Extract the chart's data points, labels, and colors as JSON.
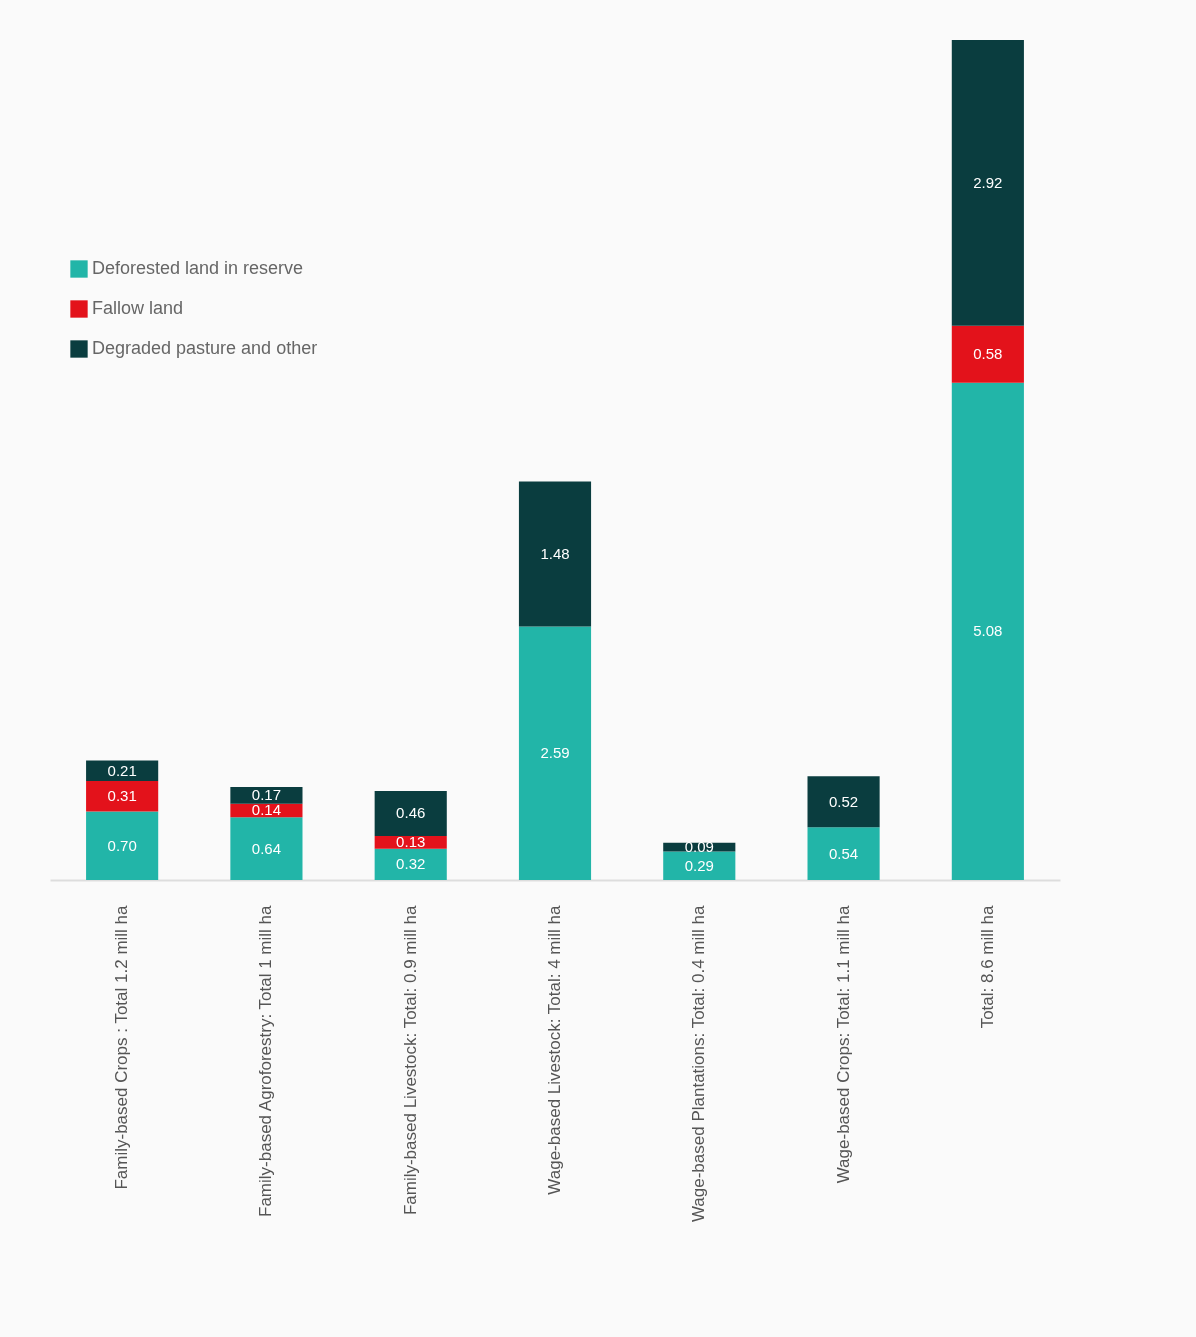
{
  "chart_data": {
    "type": "bar",
    "stacked": true,
    "legend": "top left",
    "tick_labels": "x",
    "grid": false,
    "categories": [
      "Family-based Crops : Total 1.2 mill ha",
      "Family-based Agroforestry: Total 1 mill ha",
      "Family-based Livestock: Total: 0.9 mill ha",
      "Wage-based Livestock: Total: 4 mill ha",
      "Wage-based Plantations: Total: 0.4 mill ha",
      "Wage-based Crops: Total: 1.1 mill ha",
      "Total: 8.6 mill ha"
    ],
    "series": [
      {
        "name": "Deforested land in reserve",
        "color": "#22b5a8",
        "values": [
          0.7,
          0.64,
          0.32,
          2.59,
          0.29,
          0.54,
          5.08
        ],
        "value_labels": [
          "0.70",
          "0.64",
          "0.32",
          "2.59",
          "0.29",
          "0.54",
          "5.08"
        ]
      },
      {
        "name": "Fallow land",
        "color": "#e3121b",
        "values": [
          0.31,
          0.14,
          0.13,
          null,
          null,
          null,
          0.58
        ],
        "value_labels": [
          "0.31",
          "0.14",
          "0.13",
          null,
          null,
          null,
          "0.58"
        ]
      },
      {
        "name": "Degraded pasture and other",
        "color": "#0a3d3f",
        "values": [
          0.21,
          0.17,
          0.46,
          1.48,
          0.09,
          0.52,
          2.92
        ],
        "value_labels": [
          "0.21",
          "0.17",
          "0.46",
          "1.48",
          "0.09",
          "0.52",
          "2.92"
        ]
      }
    ]
  }
}
